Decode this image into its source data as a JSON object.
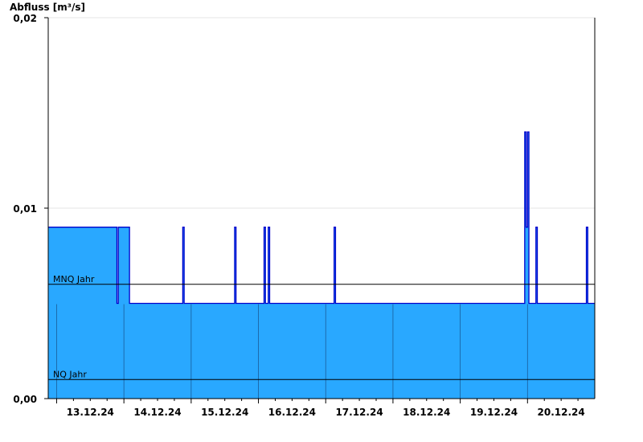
{
  "chart_data": {
    "type": "area",
    "title": "",
    "xlabel": "",
    "ylabel": "Abfluss [m³/s]",
    "ylim": [
      0,
      0.02
    ],
    "y_ticks": [
      "0,00",
      "0,01",
      "0,02"
    ],
    "x_ticks": [
      "13.12.24",
      "14.12.24",
      "15.12.24",
      "16.12.24",
      "17.12.24",
      "18.12.24",
      "19.12.24",
      "20.12.24"
    ],
    "grid": true,
    "fill_color": "#29A8FF",
    "line_color": "#0000CC",
    "reference_lines": [
      {
        "label": "MNQ Jahr",
        "value": 0.006
      },
      {
        "label": "NQ Jahr",
        "value": 0.001
      }
    ],
    "series": [
      {
        "x": [
          "12.12.24 21:00",
          "13.12.24 21:00",
          "13.12.24 21:30",
          "13.12.24 22:00",
          "14.12.24 02:00",
          "14.12.24 21:00",
          "14.12.24 21:30",
          "15.12.24 15:30",
          "15.12.24 16:00",
          "16.12.24 02:00",
          "16.12.24 02:30",
          "16.12.24 03:30",
          "16.12.24 04:00",
          "17.12.24 03:00",
          "17.12.24 03:30",
          "19.12.24 23:00",
          "19.12.24 23:30",
          "20.12.24 00:00",
          "20.12.24 00:30",
          "20.12.24 03:00",
          "20.12.24 03:30",
          "20.12.24 21:00",
          "20.12.24 21:30",
          "21.12.24 00:00"
        ],
        "y": [
          0.009,
          0.009,
          0.005,
          0.009,
          0.005,
          0.009,
          0.005,
          0.009,
          0.005,
          0.009,
          0.005,
          0.009,
          0.005,
          0.009,
          0.005,
          0.014,
          0.009,
          0.014,
          0.005,
          0.009,
          0.005,
          0.009,
          0.005,
          0.005
        ]
      }
    ]
  }
}
